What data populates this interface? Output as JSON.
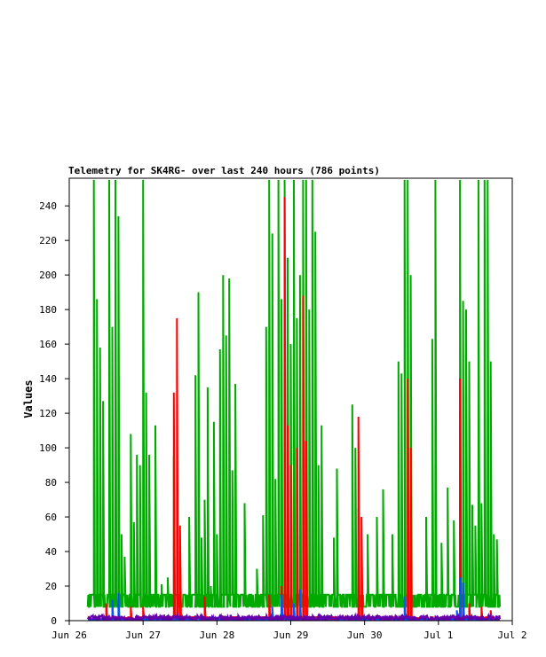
{
  "chart_data": {
    "type": "line",
    "title": "Telemetry for SK4RG- over last 240 hours (786 points)",
    "xlabel": "",
    "ylabel": "Values",
    "ylim": [
      0,
      256
    ],
    "xlim": [
      "Jun 26",
      "Jul 2"
    ],
    "x_ticks": [
      "Jun 26",
      "Jun 27",
      "Jun 28",
      "Jun 29",
      "Jun 30",
      "Jul 1",
      "Jul 2"
    ],
    "y_ticks": [
      0,
      20,
      40,
      60,
      80,
      100,
      120,
      140,
      160,
      180,
      200,
      220,
      240
    ],
    "grid": false,
    "data_start": "Jun 26 06:00",
    "data_end": "Jul 1 20:00",
    "series": [
      {
        "color": "#00aa00",
        "baseline": [
          8,
          15
        ],
        "spikes": [
          [
            "Jun 26 08:00",
            255
          ],
          [
            "Jun 26 09:00",
            186
          ],
          [
            "Jun 26 10:00",
            158
          ],
          [
            "Jun 26 11:00",
            127
          ],
          [
            "Jun 26 13:00",
            255
          ],
          [
            "Jun 26 14:00",
            170
          ],
          [
            "Jun 26 15:00",
            255
          ],
          [
            "Jun 26 16:00",
            234
          ],
          [
            "Jun 26 17:00",
            50
          ],
          [
            "Jun 26 18:00",
            37
          ],
          [
            "Jun 26 20:00",
            108
          ],
          [
            "Jun 26 21:00",
            57
          ],
          [
            "Jun 26 22:00",
            96
          ],
          [
            "Jun 26 23:00",
            90
          ],
          [
            "Jun 27 00:00",
            255
          ],
          [
            "Jun 27 01:00",
            132
          ],
          [
            "Jun 27 02:00",
            96
          ],
          [
            "Jun 27 04:00",
            113
          ],
          [
            "Jun 27 06:00",
            21
          ],
          [
            "Jun 27 08:00",
            25
          ],
          [
            "Jun 27 10:00",
            95
          ],
          [
            "Jun 27 12:00",
            40
          ],
          [
            "Jun 27 15:00",
            60
          ],
          [
            "Jun 27 17:00",
            142
          ],
          [
            "Jun 27 18:00",
            190
          ],
          [
            "Jun 27 19:00",
            48
          ],
          [
            "Jun 27 20:00",
            70
          ],
          [
            "Jun 27 21:00",
            135
          ],
          [
            "Jun 27 22:00",
            20
          ],
          [
            "Jun 27 23:00",
            115
          ],
          [
            "Jun 28 00:00",
            50
          ],
          [
            "Jun 28 01:00",
            157
          ],
          [
            "Jun 28 02:00",
            200
          ],
          [
            "Jun 28 03:00",
            165
          ],
          [
            "Jun 28 04:00",
            198
          ],
          [
            "Jun 28 05:00",
            87
          ],
          [
            "Jun 28 06:00",
            137
          ],
          [
            "Jun 28 09:00",
            68
          ],
          [
            "Jun 28 13:00",
            30
          ],
          [
            "Jun 28 15:00",
            61
          ],
          [
            "Jun 28 16:00",
            170
          ],
          [
            "Jun 28 17:00",
            255
          ],
          [
            "Jun 28 18:00",
            224
          ],
          [
            "Jun 28 19:00",
            82
          ],
          [
            "Jun 28 20:00",
            255
          ],
          [
            "Jun 28 21:00",
            186
          ],
          [
            "Jun 28 22:00",
            255
          ],
          [
            "Jun 28 23:00",
            210
          ],
          [
            "Jun 29 00:00",
            160
          ],
          [
            "Jun 29 01:00",
            255
          ],
          [
            "Jun 29 02:00",
            175
          ],
          [
            "Jun 29 03:00",
            200
          ],
          [
            "Jun 29 04:00",
            255
          ],
          [
            "Jun 29 05:00",
            255
          ],
          [
            "Jun 29 06:00",
            180
          ],
          [
            "Jun 29 07:00",
            255
          ],
          [
            "Jun 29 08:00",
            225
          ],
          [
            "Jun 29 09:00",
            90
          ],
          [
            "Jun 29 10:00",
            113
          ],
          [
            "Jun 29 14:00",
            48
          ],
          [
            "Jun 29 15:00",
            88
          ],
          [
            "Jun 29 20:00",
            125
          ],
          [
            "Jun 29 21:00",
            100
          ],
          [
            "Jun 29 22:00",
            65
          ],
          [
            "Jun 30 01:00",
            50
          ],
          [
            "Jun 30 04:00",
            60
          ],
          [
            "Jun 30 06:00",
            76
          ],
          [
            "Jun 30 09:00",
            50
          ],
          [
            "Jun 30 11:00",
            150
          ],
          [
            "Jun 30 12:00",
            143
          ],
          [
            "Jun 30 13:00",
            255
          ],
          [
            "Jun 30 14:00",
            255
          ],
          [
            "Jun 30 15:00",
            200
          ],
          [
            "Jun 30 20:00",
            60
          ],
          [
            "Jun 30 22:00",
            163
          ],
          [
            "Jun 30 23:00",
            255
          ],
          [
            "Jul 1 01:00",
            45
          ],
          [
            "Jul 1 03:00",
            77
          ],
          [
            "Jul 1 05:00",
            58
          ],
          [
            "Jul 1 07:00",
            255
          ],
          [
            "Jul 1 08:00",
            185
          ],
          [
            "Jul 1 09:00",
            180
          ],
          [
            "Jul 1 10:00",
            148
          ],
          [
            "Jul 1 11:00",
            67
          ],
          [
            "Jul 1 12:00",
            40
          ],
          [
            "Jul 1 13:00",
            255
          ],
          [
            "Jul 1 14:00",
            68
          ],
          [
            "Jul 1 15:00",
            255
          ],
          [
            "Jul 1 16:00",
            255
          ],
          [
            "Jul 1 17:00",
            150
          ],
          [
            "Jul 1 10:00",
            150
          ],
          [
            "Jul 1 14:00",
            40
          ],
          [
            "Jul 1 08:00",
            48
          ],
          [
            "Jul 1 12:00",
            55
          ],
          [
            "Jul 1 14:00",
            58
          ],
          [
            "Jul 1 16:00",
            55
          ],
          [
            "Jul 1 18:00",
            50
          ],
          [
            "Jul 1 19:00",
            47
          ]
        ]
      },
      {
        "color": "#ff0000",
        "baseline": [
          0,
          2
        ],
        "spikes": [
          [
            "Jun 26 12:00",
            10
          ],
          [
            "Jun 26 20:00",
            8
          ],
          [
            "Jun 27 00:00",
            8
          ],
          [
            "Jun 27 10:00",
            132
          ],
          [
            "Jun 27 11:00",
            175
          ],
          [
            "Jun 27 12:00",
            55
          ],
          [
            "Jun 27 20:00",
            14
          ],
          [
            "Jun 28 17:00",
            15
          ],
          [
            "Jun 28 21:00",
            20
          ],
          [
            "Jun 28 22:00",
            245
          ],
          [
            "Jun 28 23:00",
            113
          ],
          [
            "Jun 29 00:00",
            90
          ],
          [
            "Jun 29 02:00",
            100
          ],
          [
            "Jun 29 04:00",
            188
          ],
          [
            "Jun 29 05:00",
            104
          ],
          [
            "Jun 29 22:00",
            118
          ],
          [
            "Jun 29 23:00",
            60
          ],
          [
            "Jun 30 14:00",
            140
          ],
          [
            "Jun 30 15:00",
            100
          ],
          [
            "Jul 1 07:00",
            140
          ],
          [
            "Jul 1 10:00",
            10
          ],
          [
            "Jul 1 14:00",
            8
          ],
          [
            "Jul 1 17:00",
            6
          ]
        ]
      },
      {
        "color": "#0055ff",
        "baseline": [
          0,
          1
        ],
        "spikes": [
          [
            "Jun 26 14:00",
            12
          ],
          [
            "Jun 26 16:00",
            16
          ],
          [
            "Jun 28 18:00",
            8
          ],
          [
            "Jun 28 21:00",
            15
          ],
          [
            "Jun 29 01:00",
            10
          ],
          [
            "Jun 29 03:00",
            18
          ],
          [
            "Jun 30 13:00",
            14
          ],
          [
            "Jul 1 06:00",
            6
          ],
          [
            "Jul 1 07:00",
            25
          ],
          [
            "Jul 1 08:00",
            22
          ]
        ]
      },
      {
        "color": "#6600aa",
        "baseline": [
          0,
          3
        ],
        "spikes": []
      }
    ]
  }
}
